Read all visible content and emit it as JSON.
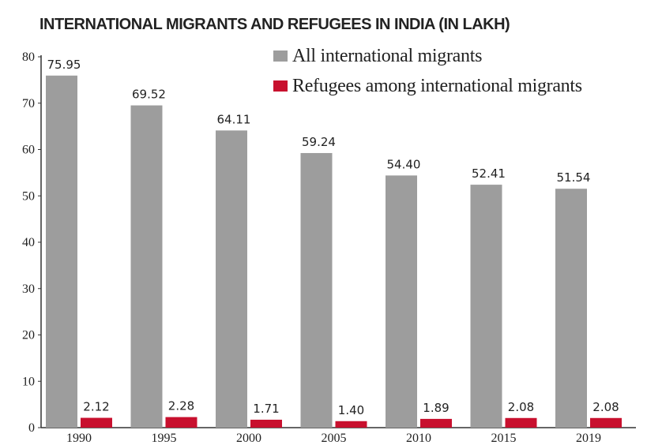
{
  "chart_data": {
    "type": "bar",
    "title": "INTERNATIONAL MIGRANTS AND REFUGEES IN INDIA (IN LAKH)",
    "xlabel": "",
    "ylabel": "",
    "ylim": [
      0,
      80
    ],
    "yticks": [
      "0",
      "10",
      "20",
      "30",
      "40",
      "50",
      "60",
      "70",
      "80"
    ],
    "categories": [
      "1990",
      "1995",
      "2000",
      "2005",
      "2010",
      "2015",
      "2019"
    ],
    "series": [
      {
        "name": "All international migrants",
        "color": "#9d9d9d",
        "values": [
          75.95,
          69.52,
          64.11,
          59.24,
          54.4,
          52.41,
          51.54
        ],
        "labels": [
          "75.95",
          "69.52",
          "64.11",
          "59.24",
          "54.40",
          "52.41",
          "51.54"
        ]
      },
      {
        "name": "Refugees among international migrants",
        "color": "#c8102e",
        "values": [
          2.12,
          2.28,
          1.71,
          1.4,
          1.89,
          2.08,
          2.08
        ],
        "labels": [
          "2.12",
          "2.28",
          "1.71",
          "1.40",
          "1.89",
          "2.08",
          "2.08"
        ]
      }
    ],
    "legend_position": "top-right",
    "grid": false
  }
}
